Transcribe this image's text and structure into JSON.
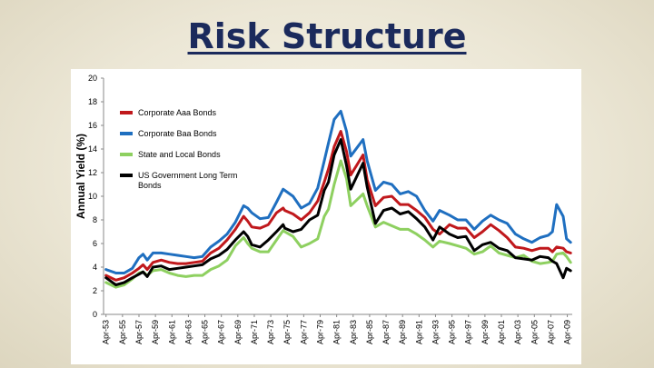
{
  "slide": {
    "title": "Risk Structure"
  },
  "chart_data": {
    "type": "line",
    "title": "",
    "xlabel": "",
    "ylabel": "Annual Yield (%)",
    "ylim": [
      0,
      20
    ],
    "yticks": [
      0,
      2,
      4,
      6,
      8,
      10,
      12,
      14,
      16,
      18,
      20
    ],
    "xlim": [
      1953.0,
      2009.9
    ],
    "xtick_labels": [
      "Apr-53",
      "Apr-55",
      "Apr-57",
      "Apr-59",
      "Apr-61",
      "Apr-63",
      "Apr-65",
      "Apr-67",
      "Apr-69",
      "Apr-71",
      "Apr-73",
      "Apr-75",
      "Apr-77",
      "Apr-79",
      "Apr-81",
      "Apr-83",
      "Apr-85",
      "Apr-87",
      "Apr-89",
      "Apr-91",
      "Apr-93",
      "Apr-95",
      "Apr-97",
      "Apr-99",
      "Apr-01",
      "Apr-03",
      "Apr-05",
      "Apr-07",
      "Apr-09"
    ],
    "grid": false,
    "legend_position": "top-left",
    "x": [
      1953.3,
      1954.5,
      1955.5,
      1956.5,
      1957.3,
      1957.8,
      1958.3,
      1959,
      1960,
      1961,
      1962,
      1963,
      1964,
      1965,
      1966,
      1967,
      1968,
      1969,
      1970,
      1970.5,
      1971,
      1972,
      1973,
      1974,
      1974.8,
      1975,
      1976,
      1977,
      1978,
      1979,
      1979.8,
      1980.3,
      1981,
      1981.8,
      1982.5,
      1983,
      1984.5,
      1985,
      1986,
      1987,
      1988,
      1989,
      1990,
      1991,
      1992,
      1993,
      1993.8,
      1995,
      1996,
      1997,
      1998,
      1999,
      2000,
      2001,
      2002,
      2003,
      2004,
      2005,
      2006,
      2007,
      2007.5,
      2008,
      2008.8,
      2009.2,
      2009.7
    ],
    "series": [
      {
        "name": "Corporate Aaa Bonds",
        "color": "#c0181c",
        "values": [
          3.3,
          2.9,
          3.1,
          3.5,
          3.9,
          4.2,
          3.8,
          4.4,
          4.6,
          4.4,
          4.3,
          4.3,
          4.4,
          4.5,
          5.2,
          5.6,
          6.3,
          7.2,
          8.3,
          7.9,
          7.4,
          7.3,
          7.6,
          8.6,
          9.0,
          8.8,
          8.5,
          8.0,
          8.6,
          9.6,
          11.2,
          12.3,
          14.2,
          15.5,
          13.8,
          11.8,
          13.5,
          11.4,
          9.2,
          9.9,
          10.0,
          9.3,
          9.3,
          8.8,
          8.2,
          7.2,
          6.8,
          7.6,
          7.3,
          7.3,
          6.5,
          7.0,
          7.6,
          7.1,
          6.5,
          5.7,
          5.6,
          5.4,
          5.6,
          5.6,
          5.3,
          5.7,
          5.6,
          5.3,
          5.2
        ]
      },
      {
        "name": "Corporate Baa Bonds",
        "color": "#1f6fc0",
        "values": [
          3.8,
          3.5,
          3.5,
          3.9,
          4.8,
          5.1,
          4.6,
          5.2,
          5.2,
          5.1,
          5.0,
          4.9,
          4.8,
          4.9,
          5.7,
          6.2,
          6.8,
          7.8,
          9.2,
          9.0,
          8.6,
          8.1,
          8.2,
          9.5,
          10.6,
          10.5,
          10.0,
          9.0,
          9.4,
          10.7,
          13.0,
          14.5,
          16.5,
          17.2,
          15.5,
          13.4,
          14.8,
          13.0,
          10.5,
          11.2,
          11.0,
          10.2,
          10.4,
          10.0,
          8.8,
          7.9,
          8.8,
          8.4,
          8.0,
          8.0,
          7.2,
          7.9,
          8.4,
          8.0,
          7.7,
          6.8,
          6.4,
          6.1,
          6.5,
          6.7,
          7.0,
          9.3,
          8.3,
          6.4,
          6.1
        ]
      },
      {
        "name": "State and Local Bonds",
        "color": "#8ed060",
        "values": [
          2.7,
          2.3,
          2.5,
          3.0,
          3.5,
          3.6,
          3.3,
          3.7,
          3.8,
          3.5,
          3.3,
          3.2,
          3.3,
          3.3,
          3.8,
          4.1,
          4.6,
          5.8,
          6.5,
          6.0,
          5.6,
          5.3,
          5.3,
          6.3,
          7.1,
          7.0,
          6.6,
          5.7,
          6.0,
          6.4,
          8.3,
          8.9,
          11.0,
          13.0,
          11.5,
          9.2,
          10.2,
          9.2,
          7.4,
          7.8,
          7.5,
          7.2,
          7.2,
          6.8,
          6.3,
          5.7,
          6.2,
          6.0,
          5.8,
          5.6,
          5.1,
          5.3,
          5.8,
          5.2,
          5.0,
          4.8,
          5.0,
          4.5,
          4.3,
          4.4,
          4.5,
          5.1,
          5.2,
          4.9,
          4.4
        ]
      },
      {
        "name": "US Government Long Term Bonds",
        "color": "#000000",
        "values": [
          3.1,
          2.5,
          2.7,
          3.1,
          3.4,
          3.6,
          3.2,
          4.0,
          4.1,
          3.8,
          3.9,
          4.0,
          4.1,
          4.2,
          4.7,
          5.0,
          5.5,
          6.3,
          7.0,
          6.6,
          5.9,
          5.7,
          6.3,
          7.0,
          7.6,
          7.3,
          7.0,
          7.2,
          8.0,
          8.4,
          10.5,
          11.2,
          13.5,
          14.8,
          12.6,
          10.6,
          12.8,
          10.8,
          7.7,
          8.8,
          9.0,
          8.5,
          8.7,
          8.1,
          7.4,
          6.3,
          7.4,
          6.8,
          6.5,
          6.6,
          5.4,
          5.9,
          6.1,
          5.6,
          5.4,
          4.8,
          4.7,
          4.6,
          4.9,
          4.8,
          4.5,
          4.3,
          3.1,
          3.9,
          3.7
        ]
      }
    ]
  }
}
